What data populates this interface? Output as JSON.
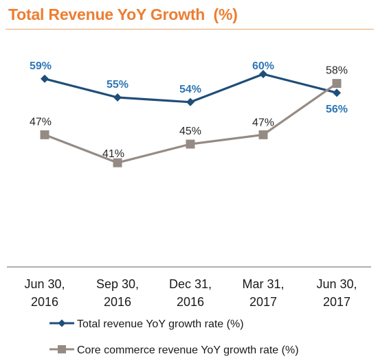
{
  "chart_data": {
    "type": "line",
    "title": "Total Revenue YoY Growth  (%)",
    "categories": [
      "Jun 30,\n2016",
      "Sep 30,\n2016",
      "Dec 31,\n2016",
      "Mar 31,\n2017",
      "Jun 30,\n2017"
    ],
    "series": [
      {
        "name": "Total revenue YoY growth rate (%)",
        "values": [
          59,
          55,
          54,
          60,
          56
        ],
        "labels": [
          "59%",
          "55%",
          "54%",
          "60%",
          "56%"
        ],
        "color": "#1F4E79",
        "label_color": "#2E75B6",
        "marker": "diamond"
      },
      {
        "name": "Core commerce revenue YoY growth rate (%)",
        "values": [
          47,
          41,
          45,
          47,
          58
        ],
        "labels": [
          "47%",
          "41%",
          "45%",
          "47%",
          "58%"
        ],
        "color": "#958B84",
        "label_color": "#262626",
        "marker": "square"
      }
    ],
    "ylim": [
      20,
      70
    ],
    "grid": false,
    "legend": "bottom"
  }
}
